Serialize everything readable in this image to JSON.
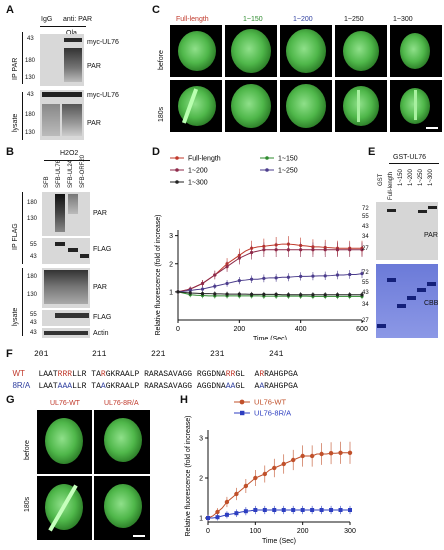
{
  "A": {
    "label": "A",
    "header_igg": "IgG",
    "header_anti": "anti: PAR",
    "header_ola": "Ola",
    "side_ip": "IP PAR",
    "side_lysate": "lysate",
    "markers_top": [
      "43",
      "180",
      "130"
    ],
    "markers_bottom": [
      "43",
      "180",
      "130"
    ],
    "band_labels": [
      "myc-UL76",
      "PAR",
      "myc-UL76",
      "PAR"
    ]
  },
  "B": {
    "label": "B",
    "h2o2": "H2O2",
    "lanes": [
      "SFB",
      "SFB-UL76",
      "SFB-UL24",
      "SFB-ORF20"
    ],
    "side_ip": "IP FLAG",
    "side_lysate": "lysate",
    "markers": [
      "180",
      "130",
      "55",
      "43",
      "180",
      "130",
      "55",
      "43",
      "43"
    ],
    "band_labels": [
      "PAR",
      "FLAG",
      "PAR",
      "FLAG",
      "Actin"
    ]
  },
  "C": {
    "label": "C",
    "columns": [
      "Full-length",
      "1~150",
      "1~200",
      "1~250",
      "1~300"
    ],
    "column_colors": [
      "#c0392b",
      "#2e8b2e",
      "#2f3f9f",
      "#111111",
      "#111111"
    ],
    "rows": [
      "before",
      "180s"
    ]
  },
  "D": {
    "label": "D",
    "legend": [
      "Full-length",
      "1~150",
      "1~200",
      "1~250",
      "1~300"
    ]
  },
  "E": {
    "label": "E",
    "header": "GST-UL76",
    "lanes": [
      "GST",
      "Full-length",
      "1~150",
      "1~200",
      "1~250",
      "1~300"
    ],
    "markers_top": [
      "72",
      "55",
      "43",
      "34",
      "27"
    ],
    "markers_bottom": [
      "72",
      "55",
      "43",
      "34",
      "27"
    ],
    "right_top": "PAR",
    "right_bottom": "CBB"
  },
  "F": {
    "label": "F",
    "numbers": [
      "201",
      "211",
      "221",
      "231",
      "241"
    ],
    "wt_label": "WT",
    "mut_label": "8R/A",
    "wt_seq": [
      "LAAT",
      "RRR",
      "LLR",
      " TA",
      "R",
      "GKRAALP",
      " RARASAVAGG",
      " RGGDNA",
      "RR",
      "GL",
      "  A",
      "R",
      "RAHGPGA"
    ],
    "mut_seq": [
      "LAAT",
      "AAA",
      "LLR",
      " TA",
      "A",
      "GKRAALP",
      " RARASAVAGG",
      " AGGDNA",
      "AA",
      "GL",
      "  A",
      "A",
      "RAHGPGA"
    ]
  },
  "G": {
    "label": "G",
    "columns": [
      "UL76-WT",
      "UL76-8R/A"
    ],
    "rows": [
      "before",
      "180s"
    ]
  },
  "H": {
    "label": "H",
    "legend": [
      "UL76-WT",
      "UL76-8R/A"
    ]
  },
  "chart_data": [
    {
      "type": "line",
      "xlabel": "Time (Sec)",
      "ylabel": "Relative fluorescence (fold of increase)",
      "xlim": [
        0,
        600
      ],
      "ylim": [
        0,
        3.2
      ],
      "xticks": [
        0,
        200,
        400,
        600
      ],
      "yticks": [
        1,
        2,
        3
      ],
      "series": [
        {
          "name": "Full-length",
          "color": "#c0392b",
          "x": [
            0,
            20,
            40,
            60,
            80,
            100,
            120,
            140,
            160,
            180,
            200,
            220,
            240,
            260,
            280,
            300,
            320,
            340,
            360,
            380,
            400,
            420,
            440,
            460,
            480,
            500,
            520,
            540,
            560,
            580,
            600
          ],
          "y": [
            1.0,
            1.05,
            1.1,
            1.2,
            1.3,
            1.45,
            1.6,
            1.8,
            2.0,
            2.15,
            2.3,
            2.45,
            2.55,
            2.6,
            2.62,
            2.65,
            2.67,
            2.7,
            2.7,
            2.68,
            2.65,
            2.63,
            2.6,
            2.6,
            2.58,
            2.57,
            2.55,
            2.55,
            2.55,
            2.55,
            2.55
          ]
        },
        {
          "name": "1~150",
          "color": "#2e8b2e",
          "x": [
            0,
            20,
            40,
            60,
            80,
            100,
            120,
            140,
            160,
            180,
            200,
            220,
            240,
            260,
            280,
            300,
            320,
            340,
            360,
            380,
            400,
            420,
            440,
            460,
            480,
            500,
            520,
            540,
            560,
            580,
            600
          ],
          "y": [
            1.0,
            0.95,
            0.9,
            0.88,
            0.87,
            0.86,
            0.86,
            0.86,
            0.86,
            0.86,
            0.86,
            0.86,
            0.86,
            0.86,
            0.85,
            0.85,
            0.85,
            0.85,
            0.85,
            0.85,
            0.85,
            0.85,
            0.84,
            0.84,
            0.84,
            0.84,
            0.84,
            0.84,
            0.84,
            0.84,
            0.84
          ]
        },
        {
          "name": "1~200",
          "color": "#8e2a4a",
          "x": [
            0,
            20,
            40,
            60,
            80,
            100,
            120,
            140,
            160,
            180,
            200,
            220,
            240,
            260,
            280,
            300,
            320,
            340,
            360,
            380,
            400,
            420,
            440,
            460,
            480,
            500,
            520,
            540,
            560,
            580,
            600
          ],
          "y": [
            1.0,
            1.05,
            1.1,
            1.2,
            1.3,
            1.45,
            1.6,
            1.75,
            1.9,
            2.05,
            2.2,
            2.3,
            2.4,
            2.45,
            2.5,
            2.5,
            2.5,
            2.5,
            2.5,
            2.5,
            2.5,
            2.5,
            2.5,
            2.5,
            2.5,
            2.5,
            2.5,
            2.5,
            2.5,
            2.5,
            2.5
          ]
        },
        {
          "name": "1~250",
          "color": "#4b3c8c",
          "x": [
            0,
            20,
            40,
            60,
            80,
            100,
            120,
            140,
            160,
            180,
            200,
            220,
            240,
            260,
            280,
            300,
            320,
            340,
            360,
            380,
            400,
            420,
            440,
            460,
            480,
            500,
            520,
            540,
            560,
            580,
            600
          ],
          "y": [
            1.0,
            1.02,
            1.05,
            1.08,
            1.1,
            1.15,
            1.2,
            1.25,
            1.3,
            1.35,
            1.4,
            1.42,
            1.45,
            1.45,
            1.48,
            1.5,
            1.5,
            1.52,
            1.52,
            1.54,
            1.55,
            1.55,
            1.56,
            1.57,
            1.57,
            1.58,
            1.6,
            1.6,
            1.62,
            1.62,
            1.65
          ]
        },
        {
          "name": "1~300",
          "color": "#222222",
          "x": [
            0,
            20,
            40,
            60,
            80,
            100,
            120,
            140,
            160,
            180,
            200,
            220,
            240,
            260,
            280,
            300,
            320,
            340,
            360,
            380,
            400,
            420,
            440,
            460,
            480,
            500,
            520,
            540,
            560,
            580,
            600
          ],
          "y": [
            1.0,
            0.98,
            0.96,
            0.95,
            0.94,
            0.94,
            0.93,
            0.93,
            0.92,
            0.92,
            0.92,
            0.92,
            0.91,
            0.91,
            0.91,
            0.91,
            0.91,
            0.9,
            0.9,
            0.9,
            0.9,
            0.9,
            0.9,
            0.9,
            0.9,
            0.9,
            0.9,
            0.9,
            0.9,
            0.9,
            0.9
          ]
        }
      ]
    },
    {
      "type": "line",
      "xlabel": "Time (Sec)",
      "ylabel": "Relative fluorescence (fold of increase)",
      "xlim": [
        0,
        300
      ],
      "ylim": [
        0.9,
        3.2
      ],
      "xticks": [
        0,
        100,
        200,
        300
      ],
      "yticks": [
        1,
        2,
        3
      ],
      "series": [
        {
          "name": "UL76-WT",
          "color": "#c0502a",
          "x": [
            0,
            10,
            20,
            30,
            40,
            50,
            60,
            70,
            80,
            90,
            100,
            110,
            120,
            130,
            140,
            150,
            160,
            170,
            180,
            190,
            200,
            210,
            220,
            230,
            240,
            250,
            260,
            270,
            280,
            290,
            300
          ],
          "y": [
            1.0,
            1.05,
            1.15,
            1.25,
            1.4,
            1.5,
            1.6,
            1.7,
            1.8,
            1.9,
            2.0,
            2.05,
            2.1,
            2.2,
            2.25,
            2.3,
            2.35,
            2.4,
            2.45,
            2.5,
            2.55,
            2.55,
            2.55,
            2.6,
            2.6,
            2.6,
            2.62,
            2.62,
            2.63,
            2.63,
            2.63
          ]
        },
        {
          "name": "UL76-8R/A",
          "color": "#2d3ec0",
          "x": [
            0,
            10,
            20,
            30,
            40,
            50,
            60,
            70,
            80,
            90,
            100,
            110,
            120,
            130,
            140,
            150,
            160,
            170,
            180,
            190,
            200,
            210,
            220,
            230,
            240,
            250,
            260,
            270,
            280,
            290,
            300
          ],
          "y": [
            1.0,
            1.0,
            1.02,
            1.05,
            1.08,
            1.1,
            1.12,
            1.15,
            1.17,
            1.18,
            1.2,
            1.2,
            1.2,
            1.2,
            1.2,
            1.2,
            1.2,
            1.2,
            1.2,
            1.2,
            1.2,
            1.2,
            1.2,
            1.2,
            1.2,
            1.2,
            1.2,
            1.2,
            1.2,
            1.2,
            1.2
          ]
        }
      ]
    }
  ]
}
